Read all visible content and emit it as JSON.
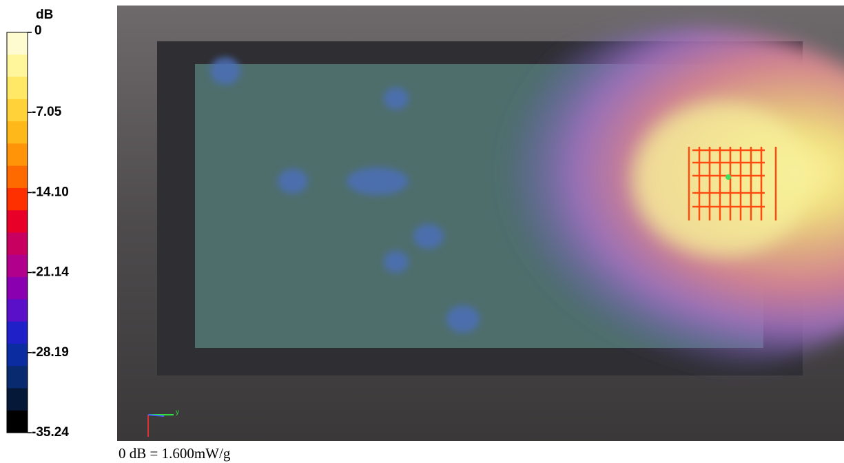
{
  "colorbar": {
    "unit": "dB",
    "lim": [
      0,
      -35.24
    ],
    "ticks": [
      0,
      -7.05,
      {
        "value": -14.1,
        "label": "-14.10"
      },
      -21.14,
      -28.19,
      -35.24
    ],
    "colors": [
      "#fffbd0",
      "#fff59a",
      "#ffe866",
      "#ffd23a",
      "#ffb81a",
      "#ff9408",
      "#ff6a00",
      "#ff3000",
      "#e80028",
      "#c80060",
      "#b0008c",
      "#8a00b0",
      "#5a10c8",
      "#2020c8",
      "#0a2ca0",
      "#0a2a70",
      "#061838",
      "#000000"
    ]
  },
  "footer": "0 dB = 1.600mW/g",
  "axis_icon": {
    "y_label": "y"
  }
}
